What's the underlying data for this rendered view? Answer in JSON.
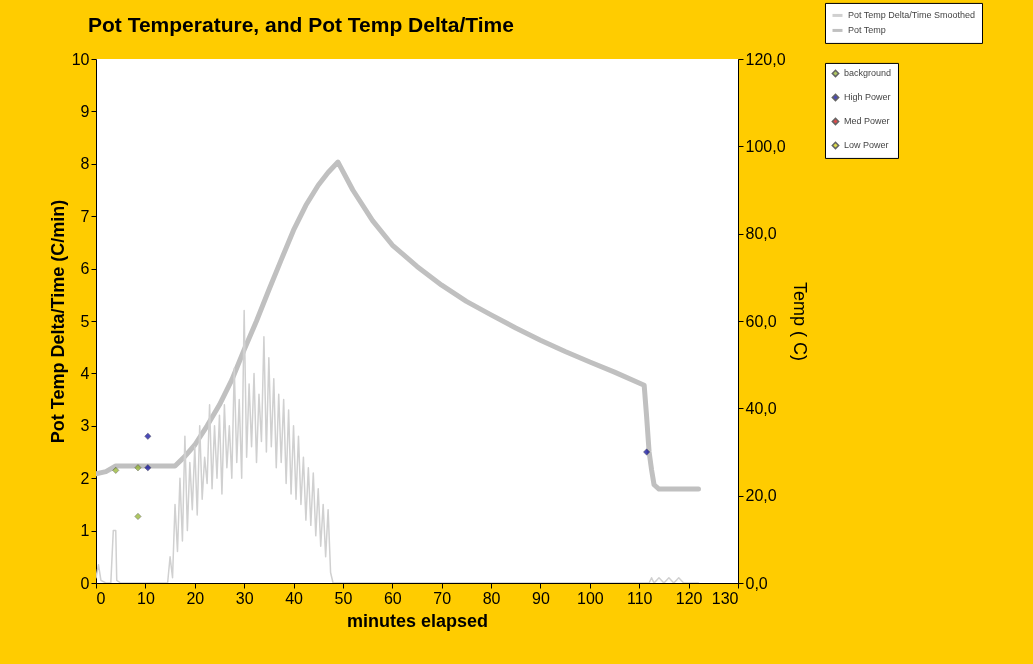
{
  "chart_data": {
    "type": "line",
    "title": "Pot Temperature, and Pot Temp Delta/Time",
    "xlabel": "minutes elapsed",
    "ylabel": "Pot Temp Delta/Time (C/min)",
    "y2label": "Temp ( C)",
    "legend": "top right",
    "xlim": [
      0,
      130
    ],
    "xticks": [
      0,
      10,
      20,
      30,
      40,
      50,
      60,
      70,
      80,
      90,
      100,
      110,
      120,
      130
    ],
    "ylim": [
      0,
      10
    ],
    "yticks": [
      0,
      1,
      2,
      3,
      4,
      5,
      6,
      7,
      8,
      9,
      10
    ],
    "y2lim": [
      0,
      120
    ],
    "y2ticks": [
      {
        "value": 0,
        "label": "0,0"
      },
      {
        "value": 20,
        "label": "20,0"
      },
      {
        "value": 40,
        "label": "40,0"
      },
      {
        "value": 60,
        "label": "60,0"
      },
      {
        "value": 80,
        "label": "80,0"
      },
      {
        "value": 100,
        "label": "100,0"
      },
      {
        "value": 120,
        "label": "120,0"
      }
    ],
    "series": [
      {
        "name": "Pot Temp Delta/Time Smoothed",
        "color": "#d0d0d0",
        "x": [
          0,
          0.5,
          1,
          2,
          3,
          3.5,
          4,
          4.2,
          5,
          8,
          10,
          12,
          13,
          14.5,
          15,
          15.5,
          16,
          16.5,
          17,
          17.5,
          18,
          18.5,
          19,
          19.5,
          20,
          20.5,
          21,
          21.5,
          22,
          22.5,
          23,
          23.5,
          24,
          24.5,
          25,
          25.5,
          26,
          26.5,
          27,
          27.5,
          28,
          28.5,
          29,
          29.5,
          30,
          30.5,
          31,
          31.5,
          32,
          32.5,
          33,
          33.5,
          34,
          34.5,
          35,
          35.5,
          36,
          36.5,
          37,
          37.5,
          38,
          38.5,
          39,
          39.5,
          40,
          40.5,
          41,
          41.5,
          42,
          42.5,
          43,
          43.5,
          44,
          44.5,
          45,
          45.5,
          46,
          46.5,
          47,
          47.5,
          48,
          50,
          60,
          80,
          100,
          112,
          112.5,
          113,
          114,
          115,
          116,
          117,
          118,
          119,
          122
        ],
        "values": [
          0.1,
          0.35,
          0.05,
          0,
          0,
          1,
          1,
          0.05,
          0,
          0,
          0,
          0,
          0,
          0,
          0.5,
          0.1,
          1.5,
          0.6,
          2,
          0.8,
          2.8,
          1,
          2.3,
          1.4,
          2.6,
          1.3,
          3,
          1.6,
          2.4,
          1.9,
          3.4,
          1.8,
          3,
          2,
          3.2,
          1.7,
          3.4,
          2.2,
          3,
          2,
          4.1,
          2.3,
          3.5,
          2,
          5.2,
          2.4,
          3.8,
          2.6,
          4,
          2.3,
          3.6,
          2.7,
          4.7,
          2.5,
          4.3,
          2.6,
          3.9,
          2.2,
          3.6,
          2.3,
          3.5,
          1.9,
          3.3,
          1.7,
          3,
          1.6,
          2.8,
          1.5,
          2.4,
          1.2,
          2.2,
          1.1,
          2.1,
          0.9,
          1.8,
          0.7,
          1.5,
          0.5,
          1.4,
          0.2,
          0,
          0,
          0,
          0,
          0,
          0,
          0.1,
          0,
          0.1,
          0,
          0.1,
          0,
          0.1,
          0,
          0
        ]
      },
      {
        "name": "Pot Temp",
        "axis": "y2",
        "color": "#c0c0c0",
        "x": [
          0,
          2,
          4,
          16,
          18,
          20,
          22.5,
          25,
          27.5,
          30,
          32.5,
          35,
          37.5,
          40,
          42.5,
          45,
          47,
          49,
          52,
          56,
          60,
          65,
          70,
          75,
          80,
          85,
          90,
          95,
          100,
          105,
          111,
          111.5,
          112,
          112.5,
          113,
          114,
          122
        ],
        "values": [
          25,
          25.5,
          26.8,
          26.8,
          29,
          31.6,
          36,
          40.8,
          46.5,
          53.4,
          60,
          67.1,
          74,
          80.8,
          86.5,
          91.1,
          94,
          96.4,
          90,
          83,
          77.4,
          72.5,
          68.2,
          64.5,
          61.4,
          58.4,
          55.6,
          53,
          50.6,
          48.3,
          45.3,
          38,
          30,
          25.9,
          22.5,
          21.5,
          21.5
        ]
      },
      {
        "name": "background",
        "type": "scatter",
        "marker": "diamond",
        "color": "#8db020",
        "x": [
          4,
          8.5,
          8.5
        ],
        "values": [
          2.15,
          2.2,
          1.27
        ]
      },
      {
        "name": "High Power",
        "type": "scatter",
        "marker": "diamond",
        "color": "#000099",
        "x": [
          10.5,
          10.5,
          111.5
        ],
        "values": [
          2.8,
          2.2,
          2.5
        ]
      },
      {
        "name": "Med Power",
        "type": "scatter",
        "marker": "diamond",
        "color": "#cc0000"
      },
      {
        "name": "Low Power",
        "type": "scatter",
        "marker": "diamond",
        "color": "#cccc00"
      }
    ]
  }
}
